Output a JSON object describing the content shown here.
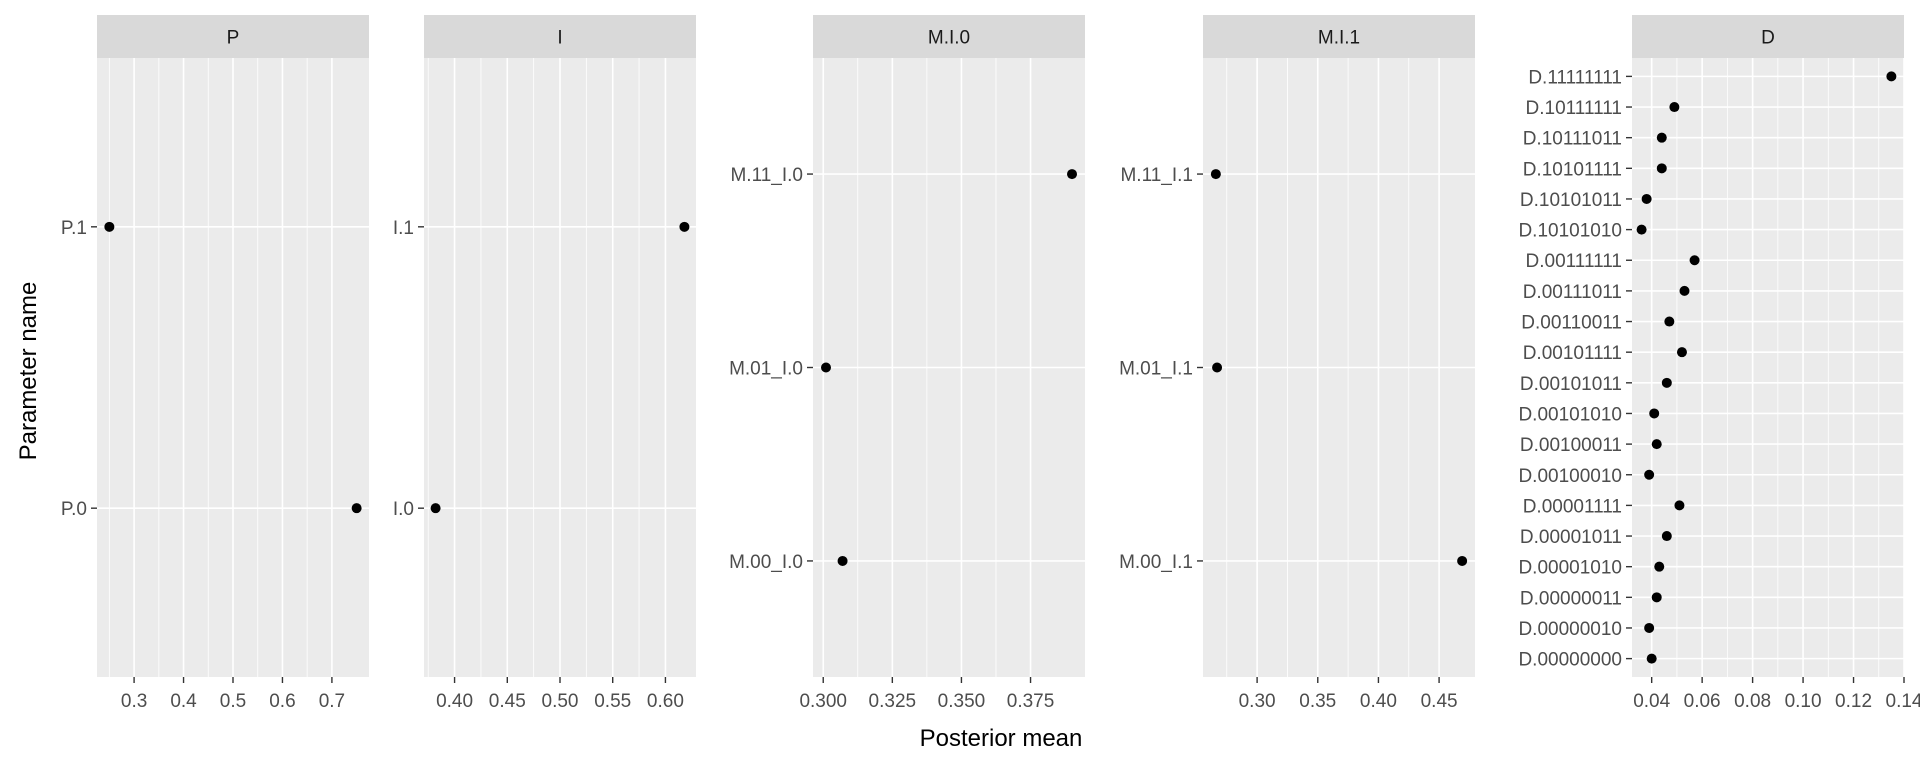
{
  "chart_data": {
    "type": "scatter",
    "xlabel": "Posterior mean",
    "ylabel": "Parameter name",
    "grid": true,
    "colors": {
      "panel_bg": "#EBEBEB",
      "strip_bg": "#D9D9D9",
      "gridline": "#FFFFFF",
      "point": "#000000",
      "tick_mark": "#333333"
    },
    "panels": [
      {
        "strip": "P",
        "xlim": [
          0.225,
          0.775
        ],
        "xticks": [
          0.3,
          0.4,
          0.5,
          0.6,
          0.7
        ],
        "xtick_labels": [
          "0.3",
          "0.4",
          "0.5",
          "0.6",
          "0.7"
        ],
        "categories": [
          "P.0",
          "P.1"
        ],
        "points": [
          {
            "name": "P.0",
            "value": 0.75
          },
          {
            "name": "P.1",
            "value": 0.25
          }
        ]
      },
      {
        "strip": "I",
        "xlim": [
          0.371,
          0.629
        ],
        "xticks": [
          0.4,
          0.45,
          0.5,
          0.55,
          0.6
        ],
        "xtick_labels": [
          "0.40",
          "0.45",
          "0.50",
          "0.55",
          "0.60"
        ],
        "categories": [
          "I.0",
          "I.1"
        ],
        "points": [
          {
            "name": "I.0",
            "value": 0.382
          },
          {
            "name": "I.1",
            "value": 0.618
          }
        ]
      },
      {
        "strip": "M.I.0",
        "xlim": [
          0.2963,
          0.3947
        ],
        "xticks": [
          0.3,
          0.325,
          0.35,
          0.375
        ],
        "xtick_labels": [
          "0.300",
          "0.325",
          "0.350",
          "0.375"
        ],
        "categories": [
          "M.00_I.0",
          "M.01_I.0",
          "M.11_I.0"
        ],
        "points": [
          {
            "name": "M.00_I.0",
            "value": 0.307
          },
          {
            "name": "M.01_I.0",
            "value": 0.301
          },
          {
            "name": "M.11_I.0",
            "value": 0.39
          }
        ]
      },
      {
        "strip": "M.I.1",
        "xlim": [
          0.2554,
          0.4796
        ],
        "xticks": [
          0.3,
          0.35,
          0.4,
          0.45
        ],
        "xtick_labels": [
          "0.30",
          "0.35",
          "0.40",
          "0.45"
        ],
        "categories": [
          "M.00_I.1",
          "M.01_I.1",
          "M.11_I.1"
        ],
        "points": [
          {
            "name": "M.00_I.1",
            "value": 0.469
          },
          {
            "name": "M.01_I.1",
            "value": 0.267
          },
          {
            "name": "M.11_I.1",
            "value": 0.266
          }
        ]
      },
      {
        "strip": "D",
        "xlim": [
          0.0322,
          0.14
        ],
        "xticks": [
          0.04,
          0.06,
          0.08,
          0.1,
          0.12,
          0.14
        ],
        "xtick_labels": [
          "0.04",
          "0.06",
          "0.08",
          "0.10",
          "0.12",
          "0.14"
        ],
        "categories": [
          "D.00000000",
          "D.00000010",
          "D.00000011",
          "D.00001010",
          "D.00001011",
          "D.00001111",
          "D.00100010",
          "D.00100011",
          "D.00101010",
          "D.00101011",
          "D.00101111",
          "D.00110011",
          "D.00111011",
          "D.00111111",
          "D.10101010",
          "D.10101011",
          "D.10101111",
          "D.10111011",
          "D.10111111",
          "D.11111111"
        ],
        "points": [
          {
            "name": "D.00000000",
            "value": 0.04
          },
          {
            "name": "D.00000010",
            "value": 0.039
          },
          {
            "name": "D.00000011",
            "value": 0.042
          },
          {
            "name": "D.00001010",
            "value": 0.043
          },
          {
            "name": "D.00001011",
            "value": 0.046
          },
          {
            "name": "D.00001111",
            "value": 0.051
          },
          {
            "name": "D.00100010",
            "value": 0.039
          },
          {
            "name": "D.00100011",
            "value": 0.042
          },
          {
            "name": "D.00101010",
            "value": 0.041
          },
          {
            "name": "D.00101011",
            "value": 0.046
          },
          {
            "name": "D.00101111",
            "value": 0.052
          },
          {
            "name": "D.00110011",
            "value": 0.047
          },
          {
            "name": "D.00111011",
            "value": 0.053
          },
          {
            "name": "D.00111111",
            "value": 0.057
          },
          {
            "name": "D.10101010",
            "value": 0.036
          },
          {
            "name": "D.10101011",
            "value": 0.038
          },
          {
            "name": "D.10101111",
            "value": 0.044
          },
          {
            "name": "D.10111011",
            "value": 0.044
          },
          {
            "name": "D.10111111",
            "value": 0.049
          },
          {
            "name": "D.11111111",
            "value": 0.135
          }
        ]
      }
    ]
  }
}
